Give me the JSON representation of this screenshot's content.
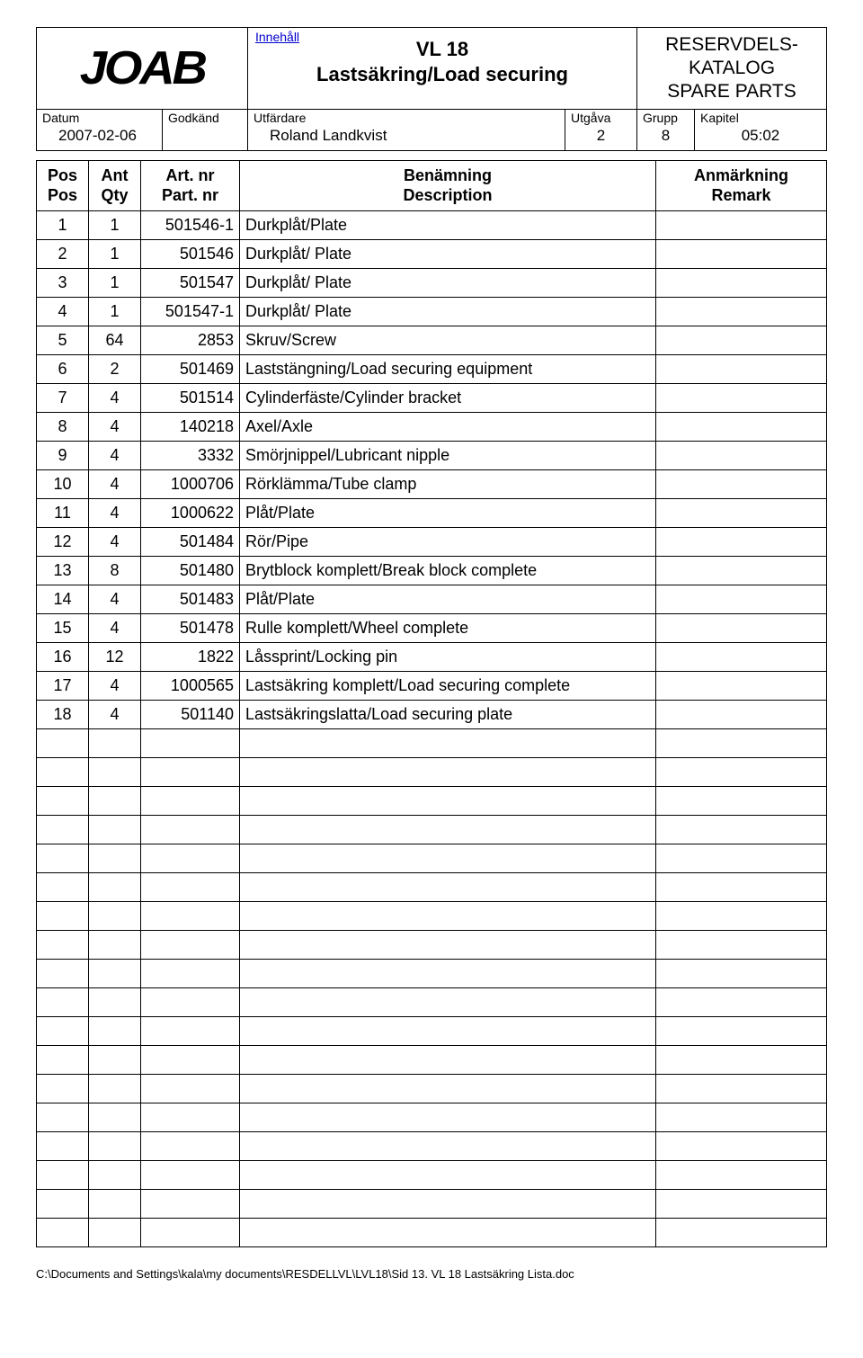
{
  "header": {
    "logo_text": "JOAB",
    "innehall_link": "Innehåll",
    "title_line1": "VL 18",
    "title_line2": "Lastsäkring/Load securing",
    "catalog_line1": "RESERVDELS-",
    "catalog_line2": "KATALOG",
    "catalog_line3": "SPARE PARTS",
    "meta": {
      "datum_label": "Datum",
      "datum_value": "2007-02-06",
      "godkand_label": "Godkänd",
      "godkand_value": "",
      "utfardare_label": "Utfärdare",
      "utfardare_value": "Roland Landkvist",
      "utgava_label": "Utgåva",
      "utgava_value": "2",
      "grupp_label": "Grupp",
      "grupp_value": "8",
      "kapitel_label": "Kapitel",
      "kapitel_value": "05:02"
    }
  },
  "table": {
    "headers": {
      "pos": "Pos\nPos",
      "qty": "Ant\nQty",
      "art": "Art. nr\nPart. nr",
      "desc": "Benämning\nDescription",
      "rem": "Anmärkning\nRemark"
    },
    "rows": [
      {
        "pos": "1",
        "qty": "1",
        "art": "501546-1",
        "desc": "Durkplåt/Plate",
        "rem": ""
      },
      {
        "pos": "2",
        "qty": "1",
        "art": "501546",
        "desc": "Durkplåt/ Plate",
        "rem": ""
      },
      {
        "pos": "3",
        "qty": "1",
        "art": "501547",
        "desc": "Durkplåt/ Plate",
        "rem": ""
      },
      {
        "pos": "4",
        "qty": "1",
        "art": "501547-1",
        "desc": "Durkplåt/ Plate",
        "rem": ""
      },
      {
        "pos": "5",
        "qty": "64",
        "art": "2853",
        "desc": "Skruv/Screw",
        "rem": ""
      },
      {
        "pos": "6",
        "qty": "2",
        "art": "501469",
        "desc": "Laststängning/Load securing equipment",
        "rem": ""
      },
      {
        "pos": "7",
        "qty": "4",
        "art": "501514",
        "desc": "Cylinderfäste/Cylinder bracket",
        "rem": ""
      },
      {
        "pos": "8",
        "qty": "4",
        "art": "140218",
        "desc": "Axel/Axle",
        "rem": ""
      },
      {
        "pos": "9",
        "qty": "4",
        "art": "3332",
        "desc": "Smörjnippel/Lubricant nipple",
        "rem": ""
      },
      {
        "pos": "10",
        "qty": "4",
        "art": "1000706",
        "desc": "Rörklämma/Tube clamp",
        "rem": ""
      },
      {
        "pos": "11",
        "qty": "4",
        "art": "1000622",
        "desc": "Plåt/Plate",
        "rem": ""
      },
      {
        "pos": "12",
        "qty": "4",
        "art": "501484",
        "desc": "Rör/Pipe",
        "rem": ""
      },
      {
        "pos": "13",
        "qty": "8",
        "art": "501480",
        "desc": "Brytblock komplett/Break block complete",
        "rem": ""
      },
      {
        "pos": "14",
        "qty": "4",
        "art": "501483",
        "desc": "Plåt/Plate",
        "rem": ""
      },
      {
        "pos": "15",
        "qty": "4",
        "art": "501478",
        "desc": "Rulle komplett/Wheel complete",
        "rem": ""
      },
      {
        "pos": "16",
        "qty": "12",
        "art": "1822",
        "desc": "Låssprint/Locking pin",
        "rem": ""
      },
      {
        "pos": "17",
        "qty": "4",
        "art": "1000565",
        "desc": "Lastsäkring komplett/Load securing complete",
        "rem": ""
      },
      {
        "pos": "18",
        "qty": "4",
        "art": "501140",
        "desc": "Lastsäkringslatta/Load securing plate",
        "rem": ""
      }
    ],
    "empty_row_count": 18
  },
  "footer": {
    "path": "C:\\Documents and Settings\\kala\\my documents\\RESDELLVL\\LVL18\\Sid 13. VL 18 Lastsäkring Lista.doc"
  }
}
